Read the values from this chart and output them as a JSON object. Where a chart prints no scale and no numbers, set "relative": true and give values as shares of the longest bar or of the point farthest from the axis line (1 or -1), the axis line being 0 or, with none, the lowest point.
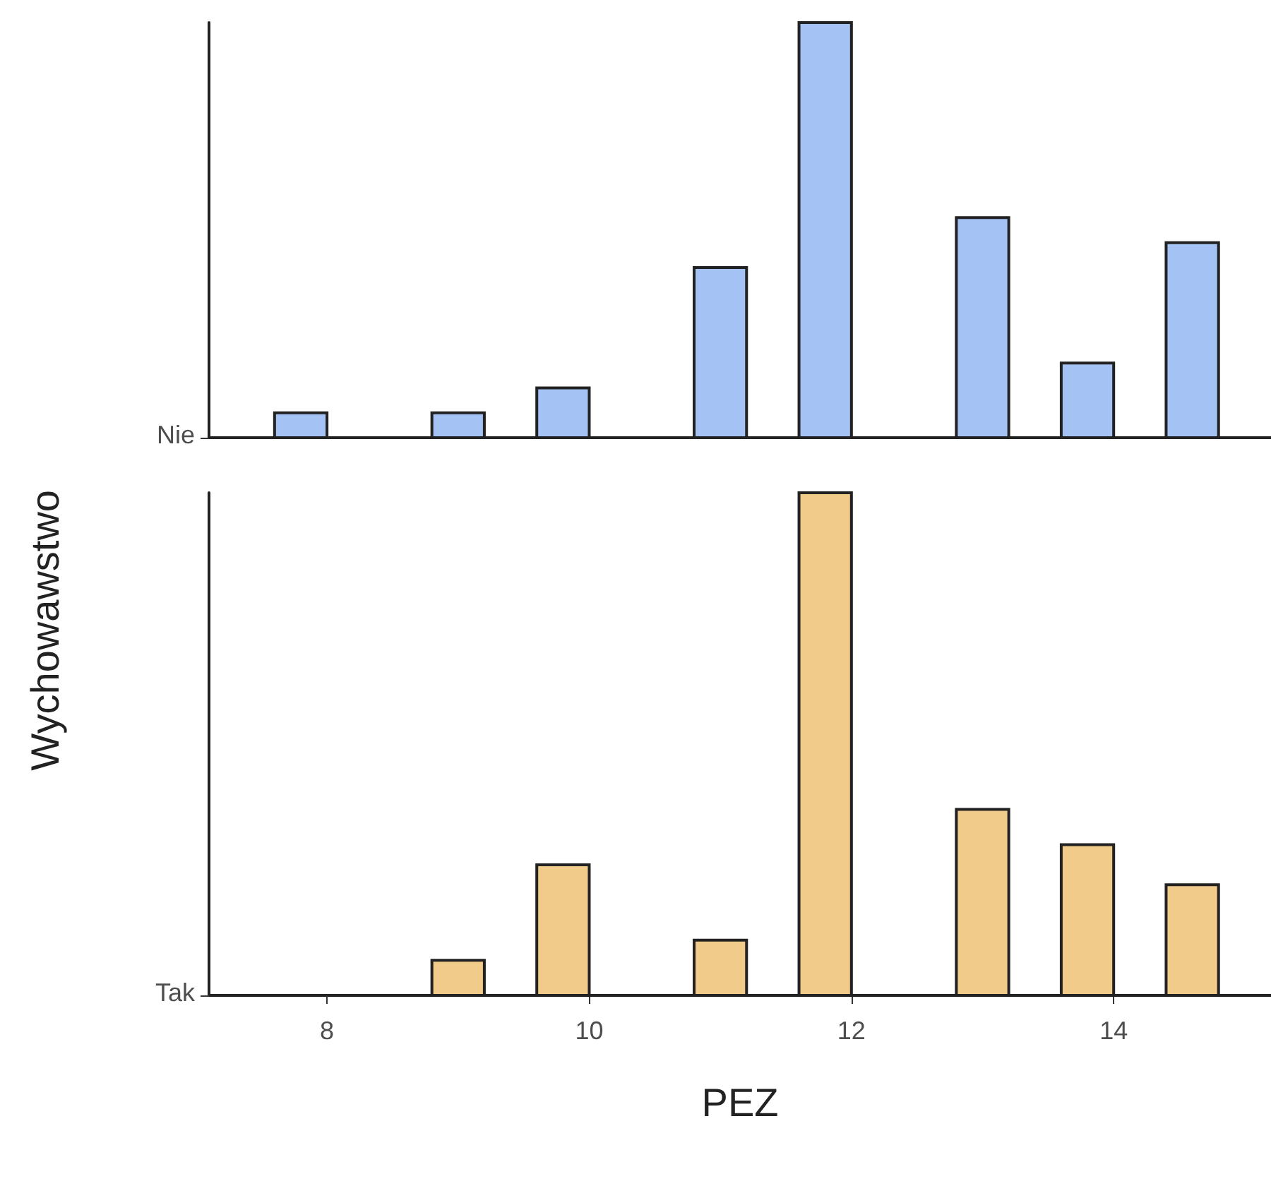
{
  "chart_data": [
    {
      "type": "bar",
      "relative": true,
      "tick_labels": false,
      "grid": false,
      "xlim": [
        7.1,
        15.2
      ],
      "xticks": [
        8,
        10,
        12,
        14
      ],
      "series": [
        {
          "name": "Nie",
          "color": "#a4c2f4",
          "x": [
            7.8,
            9.0,
            9.8,
            11.0,
            11.8,
            13.0,
            13.8,
            14.6
          ],
          "values": [
            0.06,
            0.06,
            0.12,
            0.41,
            1,
            0.53,
            0.18,
            0.47
          ]
        }
      ]
    },
    {
      "type": "bar",
      "relative": true,
      "tick_labels": "x",
      "grid": false,
      "xlabel": "PEZ",
      "ylabel": "Wychowawstwo",
      "xlim": [
        7.1,
        15.2
      ],
      "xticks": [
        8,
        10,
        12,
        14
      ],
      "series": [
        {
          "name": "Tak",
          "color": "#f0cb8a",
          "x": [
            9.0,
            9.8,
            11.0,
            11.8,
            13.0,
            13.8,
            14.6
          ],
          "values": [
            0.07,
            0.26,
            0.11,
            1,
            0.37,
            0.3,
            0.22
          ]
        }
      ]
    }
  ]
}
